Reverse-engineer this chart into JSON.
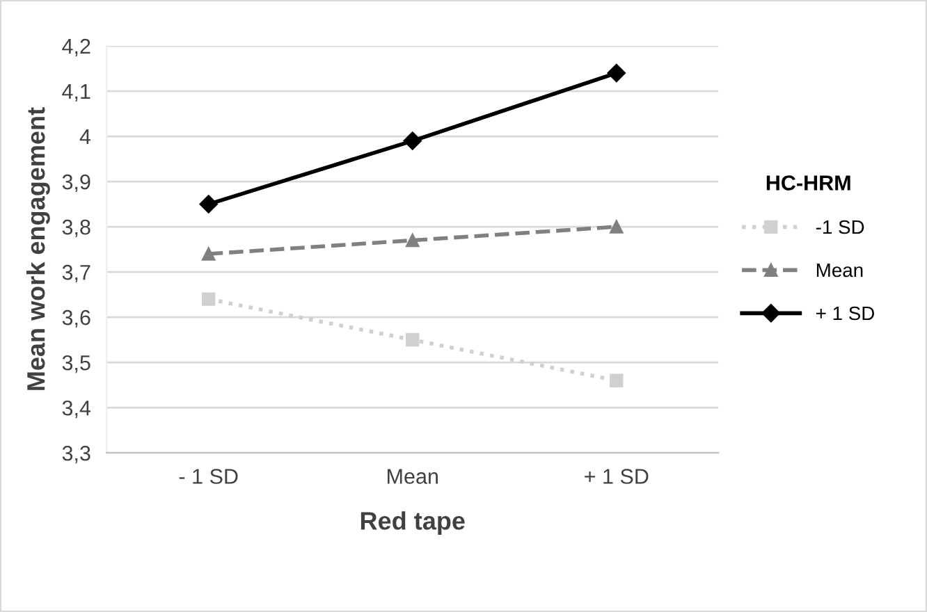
{
  "chart_data": {
    "type": "line",
    "xlabel": "Red tape",
    "ylabel": "Mean work engagement",
    "legend_title": "HC-HRM",
    "categories": [
      "- 1 SD",
      "Mean",
      "+ 1 SD"
    ],
    "series": [
      {
        "name": "-1 SD",
        "color": "#d0d0d0",
        "marker": "square",
        "line_style": "dotted",
        "values": [
          3.64,
          3.55,
          3.46
        ]
      },
      {
        "name": "Mean",
        "color": "#808080",
        "marker": "triangle",
        "line_style": "dashed",
        "values": [
          3.74,
          3.77,
          3.8
        ]
      },
      {
        "name": "+ 1 SD",
        "color": "#000000",
        "marker": "diamond",
        "line_style": "solid",
        "values": [
          3.85,
          3.99,
          4.14
        ]
      }
    ],
    "ylim": [
      3.3,
      4.2
    ],
    "yticks": [
      {
        "value": 3.3,
        "label": "3,3"
      },
      {
        "value": 3.4,
        "label": "3,4"
      },
      {
        "value": 3.5,
        "label": "3,5"
      },
      {
        "value": 3.6,
        "label": "3,6"
      },
      {
        "value": 3.7,
        "label": "3,7"
      },
      {
        "value": 3.8,
        "label": "3,8"
      },
      {
        "value": 3.9,
        "label": "3,9"
      },
      4,
      {
        "value": 4.1,
        "label": "4,1"
      },
      {
        "value": 4.2,
        "label": "4,2"
      }
    ],
    "grid": "y",
    "legend": "right"
  }
}
